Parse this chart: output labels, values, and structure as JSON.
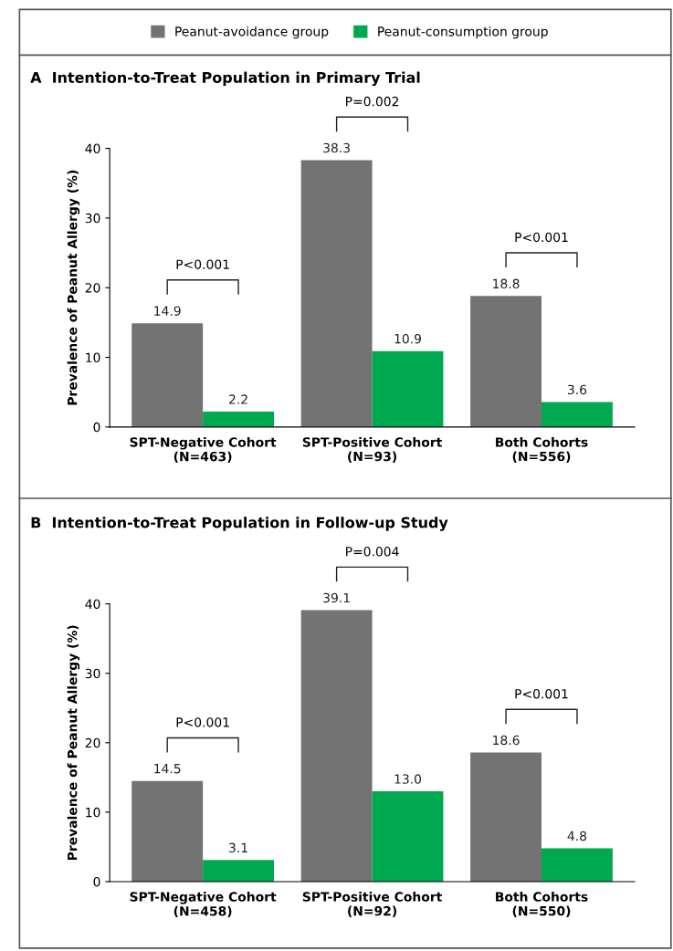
{
  "chart_data": [
    {
      "type": "bar",
      "title": "A  Intention-to-Treat Population in Primary Trial",
      "ylabel": "Prevalence of Peanut Allergy (%)",
      "categories": [
        "SPT-Negative Cohort\n(N=463)",
        "SPT-Positive Cohort\n(N=93)",
        "Both Cohorts\n(N=556)"
      ],
      "series": [
        {
          "name": "Peanut-avoidance group",
          "color": "#737373",
          "values": [
            14.9,
            38.3,
            18.8
          ],
          "value_labels": [
            "14.9",
            "38.3",
            "18.8"
          ]
        },
        {
          "name": "Peanut-consumption group",
          "color": "#00a84f",
          "values": [
            2.2,
            10.9,
            3.6
          ],
          "value_labels": [
            "2.2",
            "10.9",
            "3.6"
          ]
        }
      ],
      "ylim": [
        0,
        40
      ],
      "yticks": [
        0,
        10,
        20,
        30,
        40
      ],
      "legend": "top",
      "grid": false,
      "annotations": [
        "P<0.001",
        "P=0.002",
        "P<0.001"
      ]
    },
    {
      "type": "bar",
      "title": "B  Intention-to-Treat Population in Follow-up Study",
      "ylabel": "Prevalence of Peanut Allergy (%)",
      "categories": [
        "SPT-Negative Cohort\n(N=458)",
        "SPT-Positive Cohort\n(N=92)",
        "Both Cohorts\n(N=550)"
      ],
      "series": [
        {
          "color": "#737373",
          "values": [
            14.5,
            39.1,
            18.6
          ],
          "value_labels": [
            "14.5",
            "39.1",
            "18.6"
          ]
        },
        {
          "color": "#00a84f",
          "values": [
            3.1,
            13.0,
            4.8
          ],
          "value_labels": [
            "3.1",
            "13.0",
            "4.8"
          ]
        }
      ],
      "ylim": [
        0,
        40
      ],
      "yticks": [
        0,
        10,
        20,
        30,
        40
      ],
      "grid": false,
      "annotations": [
        "P<0.001",
        "P=0.004",
        "P<0.001"
      ]
    }
  ]
}
